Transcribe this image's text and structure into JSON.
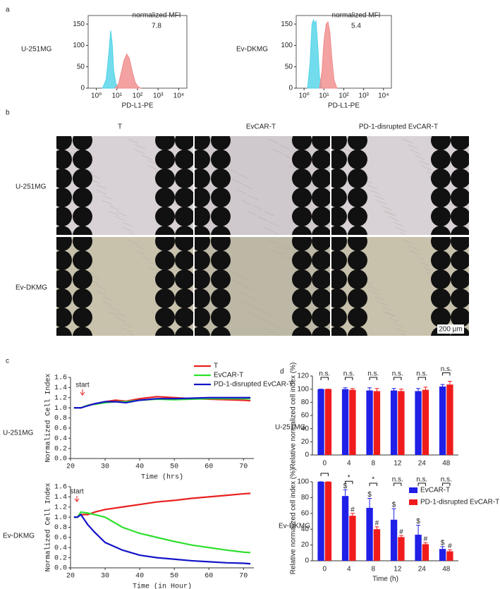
{
  "panel_labels": [
    "a",
    "b",
    "c",
    "d"
  ],
  "micrographs": {
    "columns": [
      "T",
      "EvCAR-T",
      "PD-1-disrupted EvCAR-T"
    ],
    "rows": [
      "U-251MG",
      "Ev-DKMG"
    ],
    "scale_bar": "200 μm"
  },
  "chart_data": [
    {
      "type": "area",
      "row_label": "U-251MG",
      "annotation": "normalized MFI",
      "mfi": 7.8,
      "x_label": "PD-L1-PE",
      "xscale": "log",
      "xlim": [
        0.4,
        25000
      ],
      "xticks": [
        {
          "value": 1,
          "label": "10⁰"
        },
        {
          "value": 10,
          "label": "10¹"
        },
        {
          "value": 100,
          "label": "10²"
        },
        {
          "value": 1000,
          "label": "10³"
        },
        {
          "value": 10000,
          "label": "10⁴"
        }
      ],
      "ylim": [
        0,
        170
      ],
      "yticks": [
        0,
        50,
        100,
        150
      ],
      "series": [
        {
          "color": "#4fd3e8",
          "x": [
            2,
            3,
            4,
            5,
            6,
            7,
            9,
            12
          ],
          "values": [
            0,
            20,
            80,
            135,
            100,
            40,
            10,
            0
          ]
        },
        {
          "color": "#f08a8a",
          "x": [
            8,
            12,
            16,
            22,
            30,
            40,
            55,
            75,
            100,
            140
          ],
          "values": [
            0,
            10,
            35,
            65,
            80,
            70,
            40,
            15,
            5,
            0
          ]
        }
      ]
    },
    {
      "type": "area",
      "row_label": "Ev-DKMG",
      "annotation": "normalized MFI",
      "mfi": 5.4,
      "x_label": "PD-L1-PE",
      "xscale": "log",
      "xlim": [
        0.4,
        25000
      ],
      "xticks": [
        {
          "value": 1,
          "label": "10⁰"
        },
        {
          "value": 10,
          "label": "10¹"
        },
        {
          "value": 100,
          "label": "10²"
        },
        {
          "value": 1000,
          "label": "10³"
        },
        {
          "value": 10000,
          "label": "10⁴"
        }
      ],
      "ylim": [
        0,
        170
      ],
      "yticks": [
        0,
        50,
        100,
        150
      ],
      "series": [
        {
          "color": "#4fd3e8",
          "x": [
            1.5,
            2,
            2.5,
            3,
            3.5,
            4,
            5,
            6,
            8
          ],
          "values": [
            0,
            60,
            150,
            160,
            150,
            158,
            90,
            25,
            0
          ]
        },
        {
          "color": "#f08a8a",
          "x": [
            6,
            8,
            10,
            13,
            16,
            20,
            25,
            32,
            45
          ],
          "values": [
            0,
            40,
            110,
            150,
            155,
            130,
            70,
            20,
            0
          ]
        }
      ]
    },
    {
      "type": "line",
      "row_label": "U-251MG",
      "annotation": "start",
      "x_label": "Time (hrs)",
      "y_label": "Normalized Cell Index",
      "legend": true,
      "xlim": [
        20,
        73
      ],
      "xticks": [
        20,
        30,
        40,
        50,
        60,
        70
      ],
      "ylim": [
        0,
        1.6
      ],
      "yticks": [
        {
          "value": 0,
          "label": "0.0"
        },
        0.2,
        0.4,
        0.6,
        0.8,
        {
          "value": 1,
          "label": "1.0"
        },
        1.2,
        1.4,
        1.6
      ],
      "x": [
        21,
        23,
        25,
        27,
        30,
        33,
        36,
        40,
        45,
        50,
        55,
        60,
        65,
        70,
        72
      ],
      "series": [
        {
          "name": "T",
          "color": "#e8211f",
          "values": [
            1.0,
            1.0,
            1.05,
            1.08,
            1.12,
            1.15,
            1.13,
            1.18,
            1.22,
            1.2,
            1.18,
            1.17,
            1.16,
            1.15,
            1.14
          ]
        },
        {
          "name": "EvCAR-T",
          "color": "#2ee02e",
          "values": [
            1.0,
            1.0,
            1.05,
            1.07,
            1.1,
            1.12,
            1.12,
            1.15,
            1.17,
            1.16,
            1.17,
            1.18,
            1.18,
            1.18,
            1.18
          ]
        },
        {
          "name": "PD-1-disrupted EvCAR-T",
          "color": "#1414c8",
          "values": [
            1.0,
            1.0,
            1.04,
            1.08,
            1.12,
            1.12,
            1.1,
            1.15,
            1.18,
            1.18,
            1.19,
            1.2,
            1.2,
            1.2,
            1.2
          ]
        }
      ]
    },
    {
      "type": "line",
      "row_label": "Ev-DKMG",
      "annotation": "start",
      "x_label": "Time (in Hour)",
      "y_label": "Normalized Cell Index",
      "legend": false,
      "xlim": [
        20,
        73
      ],
      "xticks": [
        20,
        30,
        40,
        50,
        60,
        70
      ],
      "ylim": [
        0,
        1.6
      ],
      "yticks": [
        {
          "value": 0,
          "label": "0.0"
        },
        0.2,
        0.4,
        0.6,
        0.8,
        {
          "value": 1,
          "label": "1.0"
        },
        1.2,
        1.4,
        1.6
      ],
      "x": [
        21,
        22,
        23,
        25,
        27,
        30,
        35,
        40,
        45,
        50,
        55,
        60,
        65,
        70,
        72
      ],
      "series": [
        {
          "name": "T",
          "color": "#e8211f",
          "values": [
            1.0,
            1.0,
            1.05,
            1.05,
            1.1,
            1.15,
            1.2,
            1.25,
            1.3,
            1.33,
            1.37,
            1.4,
            1.43,
            1.46,
            1.47
          ]
        },
        {
          "name": "EvCAR-T",
          "color": "#2ee02e",
          "values": [
            1.0,
            1.0,
            1.1,
            1.08,
            1.05,
            1.0,
            0.8,
            0.68,
            0.6,
            0.52,
            0.45,
            0.4,
            0.35,
            0.31,
            0.3
          ]
        },
        {
          "name": "PD-1-disrupted EvCAR-T",
          "color": "#1414c8",
          "values": [
            1.0,
            1.0,
            1.05,
            0.85,
            0.7,
            0.5,
            0.35,
            0.25,
            0.2,
            0.17,
            0.14,
            0.12,
            0.1,
            0.09,
            0.08
          ]
        }
      ]
    },
    {
      "type": "bar",
      "row_label": "U-251MG",
      "y_label": "Relative normalized cell index (%)",
      "legend": false,
      "categories": [
        "0",
        "4",
        "8",
        "12",
        "24",
        "48"
      ],
      "ylim": [
        0,
        120
      ],
      "yticks": [
        0,
        20,
        40,
        60,
        80,
        100,
        120
      ],
      "significance": [
        "n.s.",
        "n.s.",
        "n.s.",
        "n.s.",
        "n.s.",
        "n.s."
      ],
      "series": [
        {
          "name": "EvCAR-T",
          "color": "#1f1fe8",
          "values": [
            100,
            100,
            98,
            98,
            97,
            104
          ],
          "errors": [
            0,
            2,
            4,
            3,
            4,
            3
          ]
        },
        {
          "name": "PD-1-disrupted EvCAR-T",
          "color": "#f01c1c",
          "values": [
            100,
            99,
            97,
            97,
            99,
            107
          ],
          "errors": [
            0,
            2,
            4,
            3,
            4,
            5
          ]
        }
      ]
    },
    {
      "type": "bar",
      "row_label": "Ev-DKMG",
      "y_label": "Relative normalized cell index (%)",
      "x_label": "Time (h)",
      "legend": true,
      "categories": [
        "0",
        "4",
        "8",
        "12",
        "24",
        "48"
      ],
      "ylim": [
        0,
        100
      ],
      "yticks": [
        0,
        20,
        40,
        60,
        80,
        100
      ],
      "significance": [
        null,
        "*",
        "*",
        "n.s.",
        "n.s.",
        "n.s."
      ],
      "series": [
        {
          "name": "EvCAR-T",
          "color": "#1f1fe8",
          "values": [
            100,
            82,
            67,
            52,
            33,
            15
          ],
          "errors": [
            0,
            8,
            12,
            14,
            12,
            3
          ],
          "markers": [
            null,
            "$",
            "$",
            "$",
            "$",
            "$"
          ]
        },
        {
          "name": "PD-1-disrupted EvCAR-T",
          "color": "#f01c1c",
          "values": [
            100,
            57,
            40,
            30,
            21,
            12
          ],
          "errors": [
            0,
            3,
            3,
            2,
            2,
            2
          ],
          "markers": [
            null,
            "#",
            "#",
            "#",
            "#",
            "#"
          ]
        }
      ]
    }
  ]
}
